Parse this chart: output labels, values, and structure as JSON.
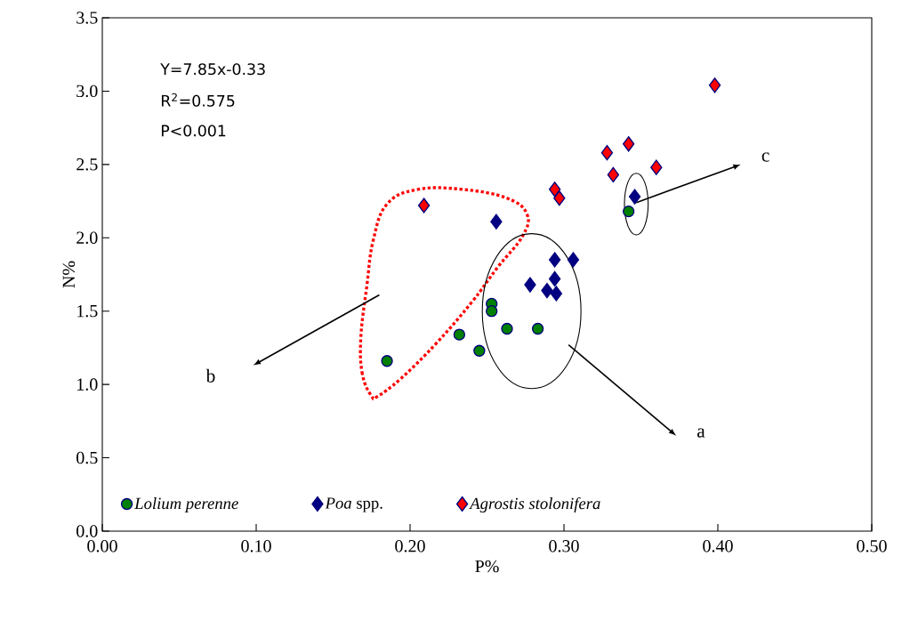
{
  "chart_data": {
    "type": "scatter",
    "xlabel": "P%",
    "ylabel": "N%",
    "xlim": [
      0,
      0.5
    ],
    "ylim": [
      0,
      3.5
    ],
    "xticks": [
      {
        "value": 0,
        "label": "0.00"
      },
      {
        "value": 0.1,
        "label": "0.10"
      },
      {
        "value": 0.2,
        "label": "0.20"
      },
      {
        "value": 0.3,
        "label": "0.30"
      },
      {
        "value": 0.4,
        "label": "0.40"
      },
      {
        "value": 0.5,
        "label": "0.50"
      }
    ],
    "yticks": [
      {
        "value": 0,
        "label": "0.0"
      },
      {
        "value": 0.5,
        "label": "0.5"
      },
      {
        "value": 1,
        "label": "1.0"
      },
      {
        "value": 1.5,
        "label": "1.5"
      },
      {
        "value": 2,
        "label": "2.0"
      },
      {
        "value": 2.5,
        "label": "2.5"
      },
      {
        "value": 3,
        "label": "3.0"
      },
      {
        "value": 3.5,
        "label": "3.5"
      }
    ],
    "grid": false,
    "legend": "bottom left",
    "series": [
      {
        "name": "*Lolium perenne*",
        "color": "#008000",
        "marker": "circle",
        "x": [
          0.185,
          0.232,
          0.245,
          0.253,
          0.253,
          0.263,
          0.283,
          0.342
        ],
        "values": [
          1.16,
          1.34,
          1.23,
          1.55,
          1.5,
          1.38,
          1.38,
          2.18
        ]
      },
      {
        "name": "*Poa* spp.",
        "color": "#000080",
        "marker": "diamond",
        "x": [
          0.256,
          0.278,
          0.294,
          0.306,
          0.294,
          0.289,
          0.295,
          0.346
        ],
        "values": [
          2.11,
          1.68,
          1.85,
          1.85,
          1.72,
          1.64,
          1.62,
          2.28
        ]
      },
      {
        "name": "*Agrostis stolonifera*",
        "color": "#ff0000",
        "marker": "diamond",
        "x": [
          0.209,
          0.294,
          0.297,
          0.328,
          0.342,
          0.332,
          0.36,
          0.398
        ],
        "values": [
          2.22,
          2.33,
          2.27,
          2.58,
          2.64,
          2.43,
          2.48,
          3.04
        ]
      }
    ],
    "annotations": [
      "Y=7.85x-0.33",
      "R$^{2}$=0.575",
      "P<0.001",
      "a",
      "b",
      "c"
    ]
  }
}
